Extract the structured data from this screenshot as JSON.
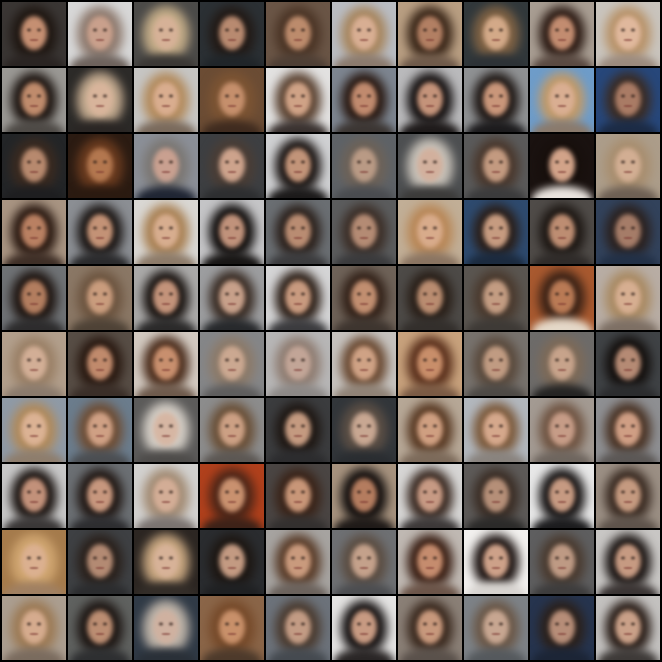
{
  "grid": {
    "rows": 10,
    "columns": 10,
    "tiles": [
      {
        "bg": "#3a3634",
        "hair": "#1f1712",
        "skin": "#c58f72",
        "cloth": "#2a2422"
      },
      {
        "bg": "#d7d7d7",
        "hair": "#8e7a6e",
        "skin": "#c9a08c",
        "cloth": "#6d625c"
      },
      {
        "bg": "#4b4a48",
        "hair": "#c2ab87",
        "skin": "#d6b197",
        "cloth": "#3b3835"
      },
      {
        "bg": "#2b3034",
        "hair": "#221a16",
        "skin": "#b88a70",
        "cloth": "#202529"
      },
      {
        "bg": "#6a5546",
        "hair": "#4b3526",
        "skin": "#bc8b6c",
        "cloth": "#4e3f35"
      },
      {
        "bg": "#b9bcc2",
        "hair": "#a7865f",
        "skin": "#d8ae93",
        "cloth": "#8b7a6d"
      },
      {
        "bg": "#b89e82",
        "hair": "#3a2719",
        "skin": "#b27f63",
        "cloth": "#6f5a4a"
      },
      {
        "bg": "#31383b",
        "hair": "#7f6244",
        "skin": "#d3a988",
        "cloth": "#2d3236"
      },
      {
        "bg": "#a89d92",
        "hair": "#2c1b14",
        "skin": "#c28c70",
        "cloth": "#5a4a42"
      },
      {
        "bg": "#c9c4bd",
        "hair": "#b8936a",
        "skin": "#e0b89d",
        "cloth": "#9b8a7d"
      },
      {
        "bg": "#9a9894",
        "hair": "#1d1511",
        "skin": "#bf8b6c",
        "cloth": "#4e4a46"
      },
      {
        "bg": "#2c2a28",
        "hair": "#c4ab90",
        "skin": "#d8b49b",
        "cloth": "#2a2624"
      },
      {
        "bg": "#c6c5c3",
        "hair": "#b38b5d",
        "skin": "#d9ad8f",
        "cloth": "#7a6a5c"
      },
      {
        "bg": "#6b4c34",
        "hair": "#7c5433",
        "skin": "#c58f6c",
        "cloth": "#3f2b1f"
      },
      {
        "bg": "#e2e1e0",
        "hair": "#5b4332",
        "skin": "#cfa286",
        "cloth": "#3a3230"
      },
      {
        "bg": "#7d8590",
        "hair": "#2a1a13",
        "skin": "#c08a6e",
        "cloth": "#3c3633"
      },
      {
        "bg": "#b9b9bb",
        "hair": "#141010",
        "skin": "#c4937a",
        "cloth": "#1e1a1a"
      },
      {
        "bg": "#8f9193",
        "hair": "#1f1815",
        "skin": "#c9967a",
        "cloth": "#1c1b1d"
      },
      {
        "bg": "#6e9cc9",
        "hair": "#c09a6a",
        "skin": "#d9ae92",
        "cloth": "#8a7a6c"
      },
      {
        "bg": "#27477a",
        "hair": "#3a2c25",
        "skin": "#a97b65",
        "cloth": "#1c2b45"
      },
      {
        "bg": "#232527",
        "hair": "#3a2a20",
        "skin": "#b7896e",
        "cloth": "#1e1e20"
      },
      {
        "bg": "#2b1b12",
        "hair": "#6a3b1f",
        "skin": "#b3774f",
        "cloth": "#2b1a10"
      },
      {
        "bg": "#8b8f97",
        "hair": "#7b7773",
        "skin": "#c9a090",
        "cloth": "#1f2533"
      },
      {
        "bg": "#3d3f42",
        "hair": "#4a3d35",
        "skin": "#cda38c",
        "cloth": "#2d2e30"
      },
      {
        "bg": "#cfd0d2",
        "hair": "#1a1412",
        "skin": "#c29479",
        "cloth": "#1c1a1a"
      },
      {
        "bg": "#5e6267",
        "hair": "#6d6258",
        "skin": "#b99a85",
        "cloth": "#4a4c50"
      },
      {
        "bg": "#4d4f51",
        "hair": "#c7c1b8",
        "skin": "#d2b09d",
        "cloth": "#3c3b3a"
      },
      {
        "bg": "#5a5a5a",
        "hair": "#4a382d",
        "skin": "#c39a80",
        "cloth": "#3b3b3c"
      },
      {
        "bg": "#1a1210",
        "hair": "#170f0c",
        "skin": "#d2a389",
        "cloth": "#e9e3de"
      },
      {
        "bg": "#ac9d8a",
        "hair": "#a88e6f",
        "skin": "#d2ae93",
        "cloth": "#6d5f53"
      },
      {
        "bg": "#a89482",
        "hair": "#2a1911",
        "skin": "#b98062",
        "cloth": "#3e2e26"
      },
      {
        "bg": "#8b8e93",
        "hair": "#1c1715",
        "skin": "#c39276",
        "cloth": "#2a2a2c"
      },
      {
        "bg": "#d9d7d3",
        "hair": "#a98154",
        "skin": "#d7ad8f",
        "cloth": "#8c7a68"
      },
      {
        "bg": "#c4c4c6",
        "hair": "#0f0c0b",
        "skin": "#c0927b",
        "cloth": "#171514"
      },
      {
        "bg": "#6a6e72",
        "hair": "#2c221d",
        "skin": "#b98c72",
        "cloth": "#3b3b3d"
      },
      {
        "bg": "#5b5c5d",
        "hair": "#3c2f28",
        "skin": "#b48b74",
        "cloth": "#3a3a3c"
      },
      {
        "bg": "#c1ae96",
        "hair": "#b88757",
        "skin": "#d8ab8b",
        "cloth": "#8a7461"
      },
      {
        "bg": "#2e4a6e",
        "hair": "#2a1f1a",
        "skin": "#c69b80",
        "cloth": "#1b2a3e"
      },
      {
        "bg": "#4f4b48",
        "hair": "#1e1814",
        "skin": "#bd8d72",
        "cloth": "#2f2b29"
      },
      {
        "bg": "#32425b",
        "hair": "#2b2220",
        "skin": "#a57c68",
        "cloth": "#223046"
      },
      {
        "bg": "#6f7275",
        "hair": "#1f1612",
        "skin": "#b27d5f",
        "cloth": "#2d2c2d"
      },
      {
        "bg": "#8a7765",
        "hair": "#6d5540",
        "skin": "#c99c7d",
        "cloth": "#4e4236"
      },
      {
        "bg": "#aaa9a8",
        "hair": "#1a1411",
        "skin": "#c3937a",
        "cloth": "#2b2a2a"
      },
      {
        "bg": "#9c9d9f",
        "hair": "#3a2d25",
        "skin": "#c7a08a",
        "cloth": "#27292c"
      },
      {
        "bg": "#d4d4d5",
        "hair": "#2e2119",
        "skin": "#c89a7f",
        "cloth": "#3b3b3e"
      },
      {
        "bg": "#6e6258",
        "hair": "#332219",
        "skin": "#c18e70",
        "cloth": "#3e352f"
      },
      {
        "bg": "#4d4a47",
        "hair": "#2a2019",
        "skin": "#b98c70",
        "cloth": "#332f2c"
      },
      {
        "bg": "#5a5550",
        "hair": "#4a3a2e",
        "skin": "#c39c82",
        "cloth": "#3e3a36"
      },
      {
        "bg": "#a8592f",
        "hair": "#3a2216",
        "skin": "#b97a55",
        "cloth": "#e4d8c8"
      },
      {
        "bg": "#b8ada4",
        "hair": "#a98a63",
        "skin": "#d6ae91",
        "cloth": "#7d6f64"
      },
      {
        "bg": "#b29f8c",
        "hair": "#9a8066",
        "skin": "#d2ae96",
        "cloth": "#8a7a6c"
      },
      {
        "bg": "#574d45",
        "hair": "#2a1a12",
        "skin": "#c08a6c",
        "cloth": "#3a2e28"
      },
      {
        "bg": "#d2c9c0",
        "hair": "#4b2d1c",
        "skin": "#c88f6e",
        "cloth": "#6e5a4c"
      },
      {
        "bg": "#858688",
        "hair": "#8c7a69",
        "skin": "#cba891",
        "cloth": "#5e5d5d"
      },
      {
        "bg": "#b7b6b6",
        "hair": "#8f7d72",
        "skin": "#c2a597",
        "cloth": "#8c8886"
      },
      {
        "bg": "#c6c2be",
        "hair": "#6b4b34",
        "skin": "#cfa285",
        "cloth": "#8f8276"
      },
      {
        "bg": "#c7a17c",
        "hair": "#5a301c",
        "skin": "#c88e6a",
        "cloth": "#7a5a44"
      },
      {
        "bg": "#77726d",
        "hair": "#5a4a3d",
        "skin": "#c09b82",
        "cloth": "#4d4945"
      },
      {
        "bg": "#6d6b69",
        "hair": "#7d6a58",
        "skin": "#c7a38b",
        "cloth": "#252423"
      },
      {
        "bg": "#3f4245",
        "hair": "#14100e",
        "skin": "#b58a74",
        "cloth": "#2b2c2e"
      },
      {
        "bg": "#8f9aa6",
        "hair": "#b08a5c",
        "skin": "#dbb294",
        "cloth": "#8e7d6c"
      },
      {
        "bg": "#6b7c8c",
        "hair": "#6e4e36",
        "skin": "#cfa084",
        "cloth": "#4b4e52"
      },
      {
        "bg": "#5c5b5a",
        "hair": "#d3cdc5",
        "skin": "#d6b6a3",
        "cloth": "#4e4c4a"
      },
      {
        "bg": "#8c8c8c",
        "hair": "#6a5038",
        "skin": "#cca084",
        "cloth": "#5c5753"
      },
      {
        "bg": "#3b3c3e",
        "hair": "#1f1814",
        "skin": "#c49a80",
        "cloth": "#2c2c2e"
      },
      {
        "bg": "#32363a",
        "hair": "#5c4f45",
        "skin": "#c8a792",
        "cloth": "#2a2d31"
      },
      {
        "bg": "#b6a796",
        "hair": "#593a24",
        "skin": "#cf9f81",
        "cloth": "#7c6a5a"
      },
      {
        "bg": "#b2b7bd",
        "hair": "#7c5a3c",
        "skin": "#d5a88c",
        "cloth": "#89837e"
      },
      {
        "bg": "#a39a92",
        "hair": "#6f5442",
        "skin": "#c69c87",
        "cloth": "#6e655e"
      },
      {
        "bg": "#8e8f92",
        "hair": "#4a3426",
        "skin": "#cf9e84",
        "cloth": "#5b5755"
      },
      {
        "bg": "#c7c7c7",
        "hair": "#1b1411",
        "skin": "#c2917a",
        "cloth": "#3a3737"
      },
      {
        "bg": "#6b6f73",
        "hair": "#221915",
        "skin": "#c7977e",
        "cloth": "#2d2d30"
      },
      {
        "bg": "#d2d1cf",
        "hair": "#a38c75",
        "skin": "#d3ad96",
        "cloth": "#7a7370"
      },
      {
        "bg": "#b0401c",
        "hair": "#4d2618",
        "skin": "#c9916f",
        "cloth": "#3d2218"
      },
      {
        "bg": "#4a4543",
        "hair": "#3a2419",
        "skin": "#c89678",
        "cloth": "#33302f"
      },
      {
        "bg": "#a6927e",
        "hair": "#120e0d",
        "skin": "#b47c5f",
        "cloth": "#1f1a18"
      },
      {
        "bg": "#d6d5d4",
        "hair": "#3a2a22",
        "skin": "#c79a84",
        "cloth": "#3c3838"
      },
      {
        "bg": "#5d5a58",
        "hair": "#3b2e26",
        "skin": "#b58f78",
        "cloth": "#2b2a29"
      },
      {
        "bg": "#e7e7e7",
        "hair": "#151212",
        "skin": "#c69a82",
        "cloth": "#1c1c1e"
      },
      {
        "bg": "#9b8f84",
        "hair": "#3a2b22",
        "skin": "#c59a80",
        "cloth": "#5e534b"
      },
      {
        "bg": "#a57b4c",
        "hair": "#d0a671",
        "skin": "#dbb090",
        "cloth": "#a08062"
      },
      {
        "bg": "#3e4043",
        "hair": "#2a211c",
        "skin": "#b38a73",
        "cloth": "#2b2c2e"
      },
      {
        "bg": "#2c2622",
        "hair": "#c7a680",
        "skin": "#d7b298",
        "cloth": "#332d28"
      },
      {
        "bg": "#2a2c2f",
        "hair": "#1d1713",
        "skin": "#c39a82",
        "cloth": "#1f2022"
      },
      {
        "bg": "#a6a3a0",
        "hair": "#5a3d2a",
        "skin": "#c99a7d",
        "cloth": "#6b625c"
      },
      {
        "bg": "#6e7073",
        "hair": "#5b4d42",
        "skin": "#c4a18b",
        "cloth": "#4c4d50"
      },
      {
        "bg": "#bfb8b2",
        "hair": "#3a1f14",
        "skin": "#c58c6e",
        "cloth": "#6b5448"
      },
      {
        "bg": "#f2f0ee",
        "hair": "#1b1210",
        "skin": "#cda189",
        "cloth": "#d7d3cf"
      },
      {
        "bg": "#5e5e5f",
        "hair": "#4a3b30",
        "skin": "#be9a84",
        "cloth": "#3d3c3c"
      },
      {
        "bg": "#c8c6c4",
        "hair": "#1a1412",
        "skin": "#c69a82",
        "cloth": "#3a3433"
      },
      {
        "bg": "#ab9e90",
        "hair": "#9c7a55",
        "skin": "#d5ab8e",
        "cloth": "#7a6b5e"
      },
      {
        "bg": "#5f615f",
        "hair": "#1e1714",
        "skin": "#bb8d72",
        "cloth": "#2e2f31"
      },
      {
        "bg": "#303a46",
        "hair": "#bdb3a8",
        "skin": "#cfb1a0",
        "cloth": "#2a3038"
      },
      {
        "bg": "#8a6548",
        "hair": "#764a2a",
        "skin": "#c8906a",
        "cloth": "#4d3a2b"
      },
      {
        "bg": "#6c727a",
        "hair": "#4b3c31",
        "skin": "#c29b84",
        "cloth": "#454a50"
      },
      {
        "bg": "#e4e3e2",
        "hair": "#141010",
        "skin": "#c79a82",
        "cloth": "#2a2626"
      },
      {
        "bg": "#8a7f76",
        "hair": "#3b2a1f",
        "skin": "#c7987c",
        "cloth": "#5a514b"
      },
      {
        "bg": "#7d8287",
        "hair": "#6b5848",
        "skin": "#c7a691",
        "cloth": "#55595d"
      },
      {
        "bg": "#26344e",
        "hair": "#2b211c",
        "skin": "#b68d78",
        "cloth": "#1c2536"
      },
      {
        "bg": "#c3c1bf",
        "hair": "#2a1e18",
        "skin": "#c9a088",
        "cloth": "#3e3a38"
      }
    ]
  }
}
